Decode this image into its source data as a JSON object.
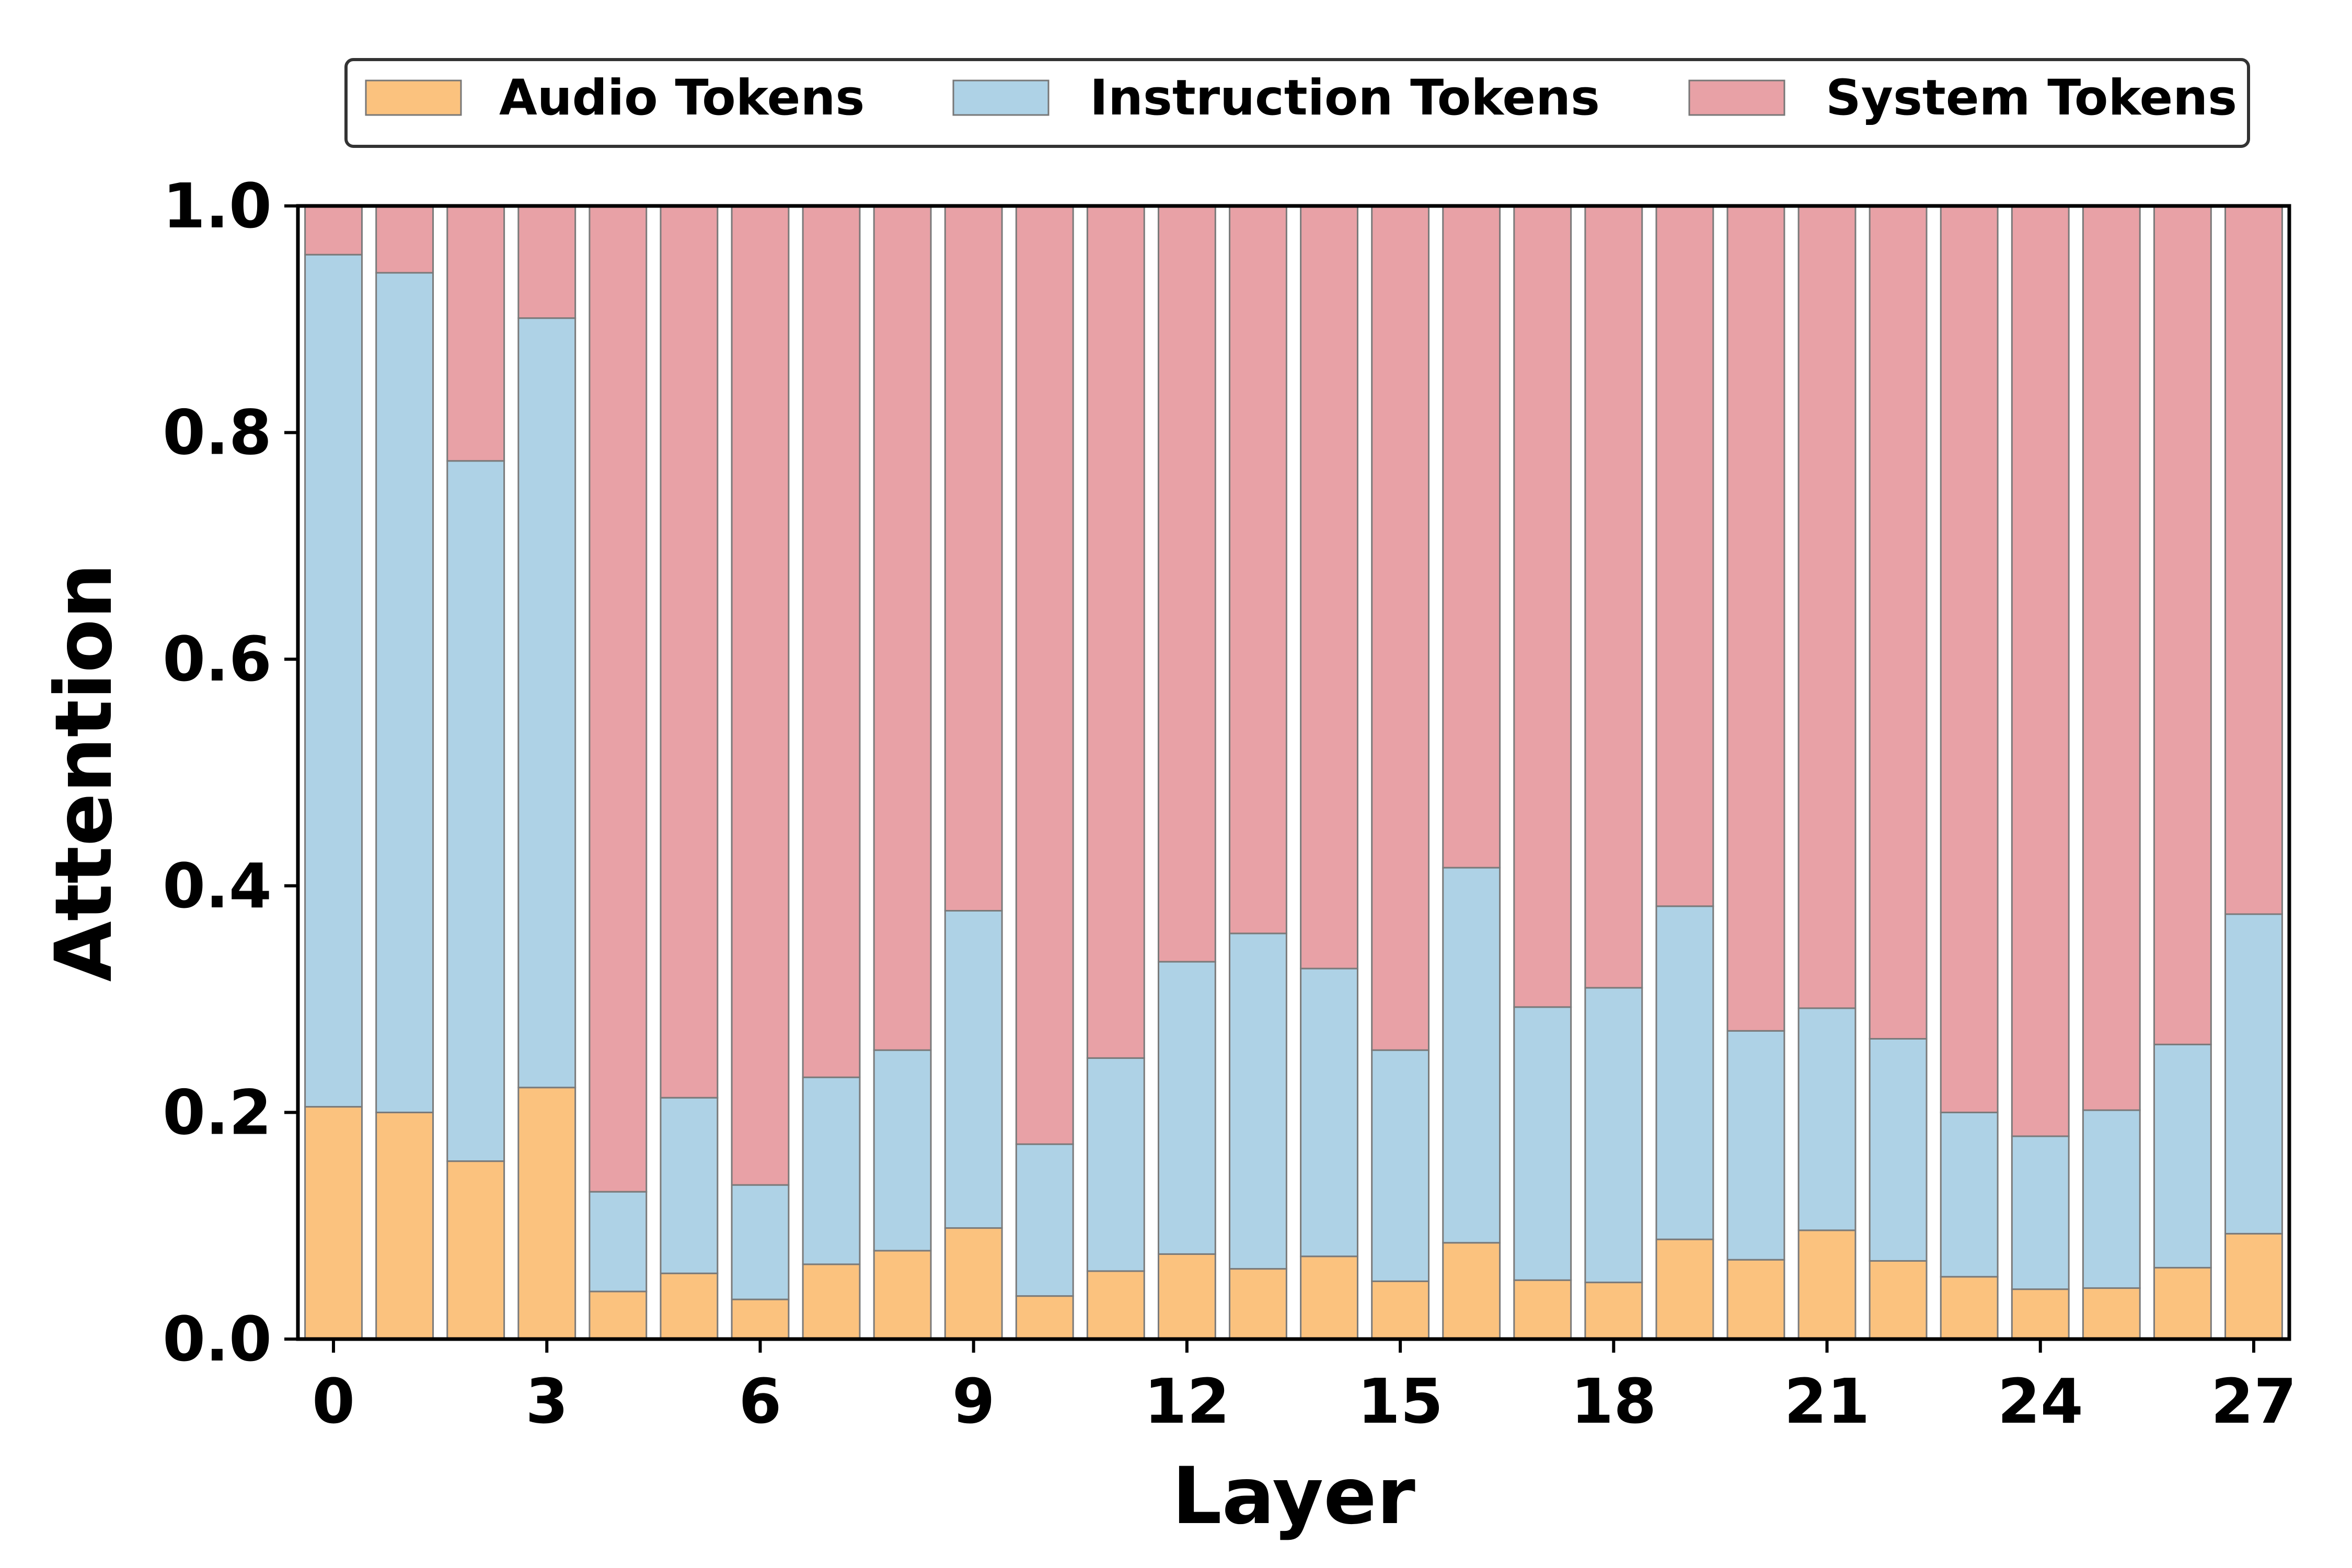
{
  "chart_data": {
    "type": "bar",
    "stacked": true,
    "title": "",
    "xlabel": "Layer",
    "ylabel": "Attention",
    "ylim": [
      0,
      1.0
    ],
    "xlim": [
      -0.5,
      27.5
    ],
    "y_ticks": [
      "0.0",
      "0.2",
      "0.4",
      "0.6",
      "0.8",
      "1.0"
    ],
    "x_ticks": [
      "0",
      "3",
      "6",
      "9",
      "12",
      "15",
      "18",
      "21",
      "24",
      "27"
    ],
    "legend_position": "top-center",
    "categories": [
      0,
      1,
      2,
      3,
      4,
      5,
      6,
      7,
      8,
      9,
      10,
      11,
      12,
      13,
      14,
      15,
      16,
      17,
      18,
      19,
      20,
      21,
      22,
      23,
      24,
      25,
      26,
      27
    ],
    "series": [
      {
        "name": "Audio Tokens",
        "color": "#fbc27e",
        "values": [
          0.205,
          0.2,
          0.157,
          0.222,
          0.042,
          0.058,
          0.035,
          0.066,
          0.078,
          0.098,
          0.038,
          0.06,
          0.075,
          0.062,
          0.073,
          0.051,
          0.085,
          0.052,
          0.05,
          0.088,
          0.07,
          0.096,
          0.069,
          0.055,
          0.044,
          0.045,
          0.063,
          0.093
        ]
      },
      {
        "name": "Instruction Tokens",
        "color": "#aed2e6",
        "values": [
          0.752,
          0.741,
          0.618,
          0.679,
          0.088,
          0.155,
          0.101,
          0.165,
          0.177,
          0.28,
          0.134,
          0.188,
          0.258,
          0.296,
          0.254,
          0.204,
          0.331,
          0.241,
          0.26,
          0.294,
          0.202,
          0.196,
          0.196,
          0.145,
          0.135,
          0.157,
          0.197,
          0.282
        ]
      },
      {
        "name": "System Tokens",
        "color": "#e8a1a6",
        "values": [
          0.043,
          0.059,
          0.225,
          0.099,
          0.87,
          0.787,
          0.864,
          0.769,
          0.745,
          0.622,
          0.828,
          0.752,
          0.667,
          0.642,
          0.673,
          0.745,
          0.584,
          0.707,
          0.69,
          0.618,
          0.728,
          0.708,
          0.735,
          0.8,
          0.821,
          0.798,
          0.74,
          0.625
        ]
      }
    ]
  }
}
